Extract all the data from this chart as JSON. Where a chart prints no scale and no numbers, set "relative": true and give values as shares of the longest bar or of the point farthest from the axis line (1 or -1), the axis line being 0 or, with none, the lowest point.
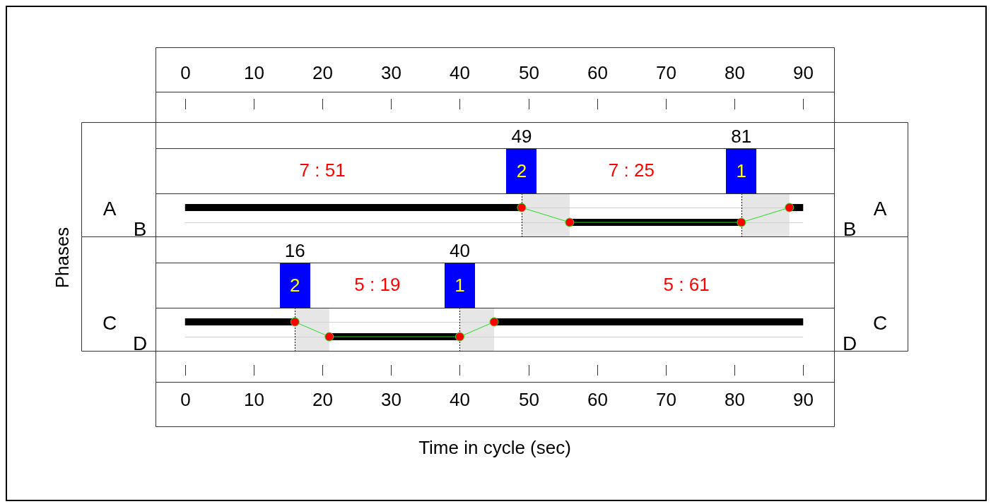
{
  "chart_data": [
    {
      "type": "line",
      "ylabel": "Phases",
      "xlim": [
        -4.3,
        94.5
      ],
      "xticks": [
        0,
        10,
        20,
        30,
        40,
        50,
        60,
        70,
        80,
        90
      ],
      "relative": true,
      "grid": "y",
      "series": [
        {
          "type": "line",
          "color": "#000000",
          "x": [
            0,
            49
          ],
          "values": [
            1,
            1
          ]
        },
        {
          "type": "line",
          "color": "#000000",
          "x": [
            56,
            81
          ],
          "values": [
            0,
            0
          ]
        },
        {
          "type": "line",
          "color": "#000000",
          "x": [
            88,
            90
          ],
          "values": [
            1,
            1
          ]
        },
        {
          "type": "line",
          "color": "#22dd22",
          "x": [
            49,
            56,
            81,
            88
          ],
          "values": [
            1,
            0,
            0,
            1
          ]
        },
        {
          "type": "scatter",
          "color": "#ff0000",
          "marker": "circle",
          "x": [
            49,
            56,
            81,
            88
          ],
          "values": [
            1,
            0,
            0,
            1
          ]
        }
      ],
      "bands": [
        {
          "axis": "x",
          "from": 49,
          "to": 56,
          "color": "#e6e6e6"
        },
        {
          "axis": "x",
          "from": 81,
          "to": 88,
          "color": "#e6e6e6"
        }
      ],
      "ref_lines": [
        {
          "axis": "x",
          "value": 49,
          "label": "49",
          "line_style": "dotted",
          "color": "#000000"
        },
        {
          "axis": "x",
          "value": 81,
          "label": "81",
          "line_style": "dotted",
          "color": "#000000"
        }
      ],
      "annotations": [
        "A",
        "B",
        "B",
        "A",
        "2",
        "1",
        "7 : 51",
        "7 : 25"
      ]
    },
    {
      "type": "line",
      "xlabel": "Time in cycle (sec)",
      "xlim": [
        -4.3,
        94.5
      ],
      "xticks": [
        0,
        10,
        20,
        30,
        40,
        50,
        60,
        70,
        80,
        90
      ],
      "relative": true,
      "grid": "y",
      "series": [
        {
          "type": "line",
          "color": "#000000",
          "x": [
            0,
            16
          ],
          "values": [
            1,
            1
          ]
        },
        {
          "type": "line",
          "color": "#000000",
          "x": [
            21,
            40
          ],
          "values": [
            0,
            0
          ]
        },
        {
          "type": "line",
          "color": "#000000",
          "x": [
            45,
            90
          ],
          "values": [
            1,
            1
          ]
        },
        {
          "type": "line",
          "color": "#22dd22",
          "x": [
            16,
            21,
            40,
            45
          ],
          "values": [
            1,
            0,
            0,
            1
          ]
        },
        {
          "type": "scatter",
          "color": "#ff0000",
          "marker": "circle",
          "x": [
            16,
            21,
            40,
            45
          ],
          "values": [
            1,
            0,
            0,
            1
          ]
        }
      ],
      "bands": [
        {
          "axis": "x",
          "from": 16,
          "to": 21,
          "color": "#e6e6e6"
        },
        {
          "axis": "x",
          "from": 40,
          "to": 45,
          "color": "#e6e6e6"
        }
      ],
      "ref_lines": [
        {
          "axis": "x",
          "value": 16,
          "label": "16",
          "line_style": "dotted",
          "color": "#000000"
        },
        {
          "axis": "x",
          "value": 40,
          "label": "40",
          "line_style": "dotted",
          "color": "#000000"
        }
      ],
      "annotations": [
        "C",
        "D",
        "D",
        "C",
        "2",
        "1",
        "5 : 19",
        "5 : 61"
      ]
    }
  ]
}
